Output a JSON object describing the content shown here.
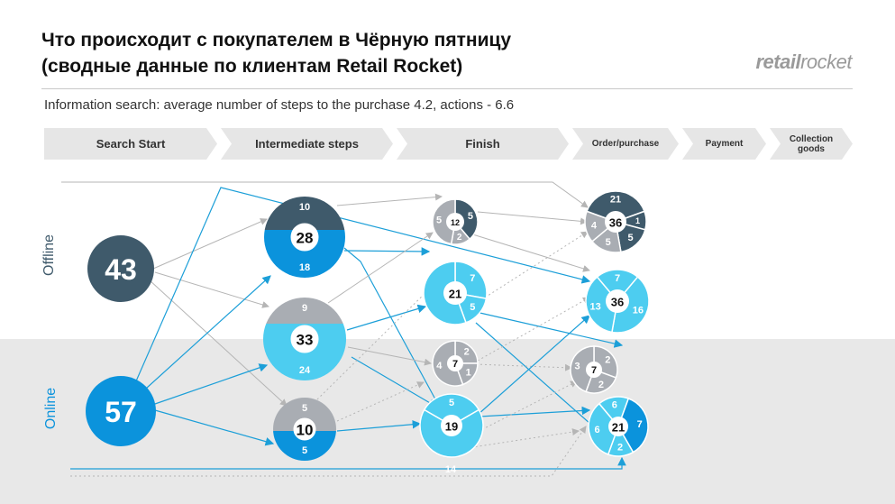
{
  "header": {
    "title_line1": "Что происходит с покупателем в Чёрную пятницу",
    "title_line2": "(сводные данные по клиентам Retail Rocket)",
    "brand_bold": "retail",
    "brand_light": "rocket",
    "subtitle": "Information search: average number of steps to the purchase 4.2, actions - 6.6"
  },
  "stages": [
    "Search Start",
    "Intermediate steps",
    "Finish",
    "Order/purchase",
    "Payment",
    "Collection goods"
  ],
  "side_labels": {
    "offline": "Offline",
    "online": "Online"
  },
  "colors": {
    "dark": "#3f5a6b",
    "blue": "#0b93dc",
    "light": "#4dcdf0",
    "grey": "#a9adb3",
    "line_blue": "#1c9fd8",
    "line_grey": "#b5b5b5"
  },
  "nodes": {
    "start_offline": {
      "total": "43"
    },
    "start_online": {
      "total": "57"
    },
    "inter_top": {
      "total": "28",
      "top": "10",
      "bottom": "18"
    },
    "inter_mid": {
      "total": "33",
      "top": "9",
      "bottom": "24"
    },
    "inter_bot": {
      "total": "10",
      "top": "5",
      "bottom": "5"
    },
    "finish_a": {
      "total": "12",
      "left": "5",
      "right": "5",
      "bottom": "2"
    },
    "finish_b": {
      "total": "21",
      "right_top": "7",
      "right_bottom": "5"
    },
    "finish_c": {
      "total": "7",
      "left": "4",
      "right_top": "2",
      "right_bottom": "1"
    },
    "finish_d": {
      "total": "19",
      "top": "5"
    },
    "order_a": {
      "total": "36",
      "top": "21",
      "left": "4",
      "bottom": "5",
      "right_bottom": "5",
      "right": "1"
    },
    "order_b": {
      "total": "36",
      "top": "7",
      "right": "16",
      "left": "13"
    },
    "order_c": {
      "total": "7",
      "left": "3",
      "right_top": "2",
      "right_bottom": "2"
    },
    "order_d": {
      "total": "21",
      "top": "6",
      "right": "7",
      "left": "6",
      "bottom": "2"
    }
  },
  "bottom_flow_label": "14"
}
